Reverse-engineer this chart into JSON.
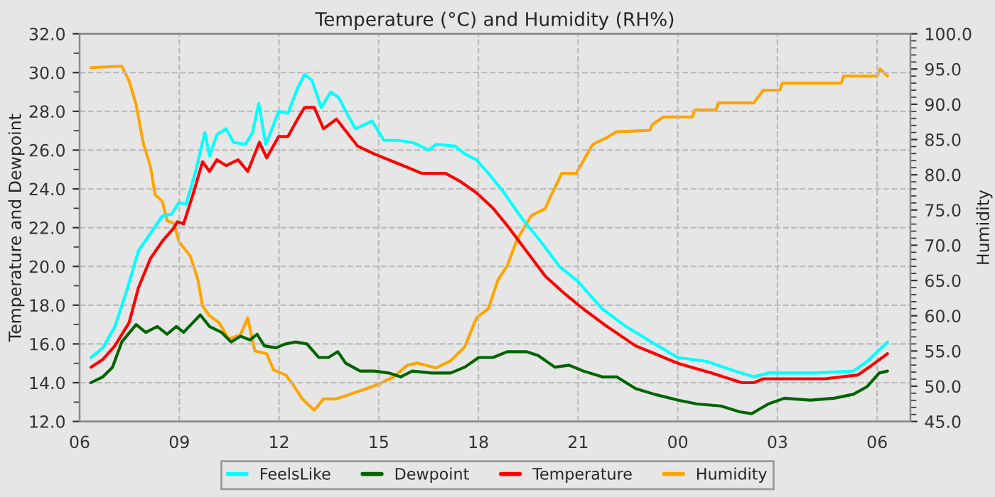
{
  "chart_data": {
    "type": "line",
    "title": "Temperature (°C) and Humidity (RH%)",
    "ylabel": "Temperature and Dewpoint",
    "y2label": "Humidity",
    "xlim": [
      6,
      31
    ],
    "xticks": [
      {
        "value": 6,
        "label": "06"
      },
      {
        "value": 9,
        "label": "09"
      },
      {
        "value": 12,
        "label": "12"
      },
      {
        "value": 15,
        "label": "15"
      },
      {
        "value": 18,
        "label": "18"
      },
      {
        "value": 21,
        "label": "21"
      },
      {
        "value": 24,
        "label": "00"
      },
      {
        "value": 27,
        "label": "03"
      },
      {
        "value": 30,
        "label": "06"
      }
    ],
    "ylim": [
      12,
      32
    ],
    "yticks": [
      {
        "value": 12,
        "label": "12.0"
      },
      {
        "value": 14,
        "label": "14.0"
      },
      {
        "value": 16,
        "label": "16.0"
      },
      {
        "value": 18,
        "label": "18.0"
      },
      {
        "value": 20,
        "label": "20.0"
      },
      {
        "value": 22,
        "label": "22.0"
      },
      {
        "value": 24,
        "label": "24.0"
      },
      {
        "value": 26,
        "label": "26.0"
      },
      {
        "value": 28,
        "label": "28.0"
      },
      {
        "value": 30,
        "label": "30.0"
      },
      {
        "value": 32,
        "label": "32.0"
      }
    ],
    "y2lim": [
      45,
      100
    ],
    "y2ticks": [
      {
        "value": 45,
        "label": "45.0"
      },
      {
        "value": 50,
        "label": "50.0"
      },
      {
        "value": 55,
        "label": "55.0"
      },
      {
        "value": 60,
        "label": "60.0"
      },
      {
        "value": 65,
        "label": "65.0"
      },
      {
        "value": 70,
        "label": "70.0"
      },
      {
        "value": 75,
        "label": "75.0"
      },
      {
        "value": 80,
        "label": "80.0"
      },
      {
        "value": 85,
        "label": "85.0"
      },
      {
        "value": 90,
        "label": "90.0"
      },
      {
        "value": 95,
        "label": "95.0"
      },
      {
        "value": 100,
        "label": "100.0"
      }
    ],
    "grid": true,
    "legend": "bottom",
    "line_style": "solid",
    "marker": "none",
    "series": [
      {
        "name": "FeelsLike",
        "color": "#00ffff",
        "x": [
          6.34,
          6.7,
          7.06,
          7.41,
          7.77,
          8.13,
          8.49,
          8.77,
          8.99,
          9.2,
          9.49,
          9.77,
          9.91,
          10.13,
          10.41,
          10.63,
          10.99,
          11.2,
          11.39,
          11.6,
          11.77,
          11.99,
          12.27,
          12.56,
          12.77,
          12.99,
          13.27,
          13.56,
          13.8,
          14.01,
          14.3,
          14.8,
          15.16,
          15.59,
          16.01,
          16.51,
          16.73,
          17.3,
          17.59,
          17.94,
          18.3,
          18.73,
          19.3,
          19.87,
          20.44,
          21.01,
          21.73,
          22.44,
          23.3,
          24.0,
          24.87,
          25.72,
          26.29,
          26.72,
          28.14,
          29.28,
          29.7,
          30.31
        ],
        "values": [
          15.3,
          15.8,
          16.9,
          18.7,
          20.8,
          21.7,
          22.6,
          22.7,
          23.3,
          23.2,
          24.9,
          26.9,
          25.7,
          26.8,
          27.1,
          26.4,
          26.3,
          26.9,
          28.4,
          26.3,
          27.0,
          28.0,
          27.9,
          29.2,
          29.9,
          29.6,
          28.2,
          29.0,
          28.7,
          28.0,
          27.1,
          27.5,
          26.5,
          26.5,
          26.4,
          26.0,
          26.3,
          26.2,
          25.8,
          25.5,
          24.8,
          23.9,
          22.5,
          21.3,
          20.0,
          19.2,
          17.8,
          16.9,
          16.0,
          15.3,
          15.1,
          14.6,
          14.3,
          14.5,
          14.5,
          14.6,
          15.1,
          16.1
        ]
      },
      {
        "name": "Dewpoint",
        "color": "#006400",
        "x": [
          6.34,
          6.7,
          6.99,
          7.27,
          7.7,
          7.99,
          8.34,
          8.63,
          8.91,
          9.13,
          9.41,
          9.63,
          9.91,
          10.27,
          10.56,
          10.84,
          11.13,
          11.34,
          11.56,
          11.91,
          12.2,
          12.49,
          12.84,
          13.2,
          13.49,
          13.77,
          14.01,
          14.44,
          14.87,
          15.3,
          15.66,
          16.01,
          16.59,
          17.16,
          17.59,
          18.01,
          18.44,
          18.87,
          19.44,
          19.8,
          20.3,
          20.73,
          21.16,
          21.73,
          22.16,
          22.73,
          23.3,
          24.0,
          24.58,
          25.29,
          25.86,
          26.22,
          26.72,
          27.21,
          27.99,
          28.7,
          29.28,
          29.7,
          30.06,
          30.31
        ],
        "values": [
          14.0,
          14.3,
          14.8,
          16.1,
          17.0,
          16.6,
          16.9,
          16.5,
          16.9,
          16.6,
          17.1,
          17.5,
          16.9,
          16.6,
          16.1,
          16.4,
          16.2,
          16.5,
          15.9,
          15.8,
          16.0,
          16.1,
          16.0,
          15.3,
          15.3,
          15.6,
          15.0,
          14.6,
          14.6,
          14.5,
          14.3,
          14.6,
          14.5,
          14.5,
          14.8,
          15.3,
          15.3,
          15.6,
          15.6,
          15.4,
          14.8,
          14.9,
          14.6,
          14.3,
          14.3,
          13.7,
          13.4,
          13.1,
          12.9,
          12.8,
          12.5,
          12.4,
          12.9,
          13.2,
          13.1,
          13.2,
          13.4,
          13.8,
          14.5,
          14.6
        ]
      },
      {
        "name": "Temperature",
        "color": "#ff0000",
        "x": [
          6.34,
          6.7,
          7.06,
          7.49,
          7.77,
          8.13,
          8.49,
          8.84,
          8.94,
          9.13,
          9.41,
          9.7,
          9.91,
          10.13,
          10.41,
          10.77,
          11.06,
          11.41,
          11.63,
          11.99,
          12.27,
          12.56,
          12.77,
          13.06,
          13.34,
          13.73,
          14.0,
          14.37,
          14.87,
          15.59,
          16.3,
          17.01,
          17.44,
          17.94,
          18.44,
          18.87,
          19.44,
          20.01,
          20.59,
          21.16,
          21.87,
          22.73,
          23.3,
          24.0,
          25.01,
          25.93,
          26.29,
          26.57,
          27.43,
          28.42,
          29.42,
          29.84,
          30.31
        ],
        "values": [
          14.8,
          15.2,
          15.9,
          17.1,
          18.9,
          20.4,
          21.3,
          22.0,
          22.3,
          22.2,
          23.7,
          25.4,
          24.9,
          25.5,
          25.2,
          25.5,
          24.9,
          26.4,
          25.6,
          26.7,
          26.7,
          27.6,
          28.2,
          28.2,
          27.1,
          27.6,
          27.0,
          26.2,
          25.8,
          25.3,
          24.8,
          24.8,
          24.4,
          23.8,
          23.0,
          22.1,
          20.8,
          19.5,
          18.6,
          17.8,
          16.9,
          15.9,
          15.5,
          15.0,
          14.5,
          14.0,
          14.0,
          14.2,
          14.2,
          14.2,
          14.4,
          14.9,
          15.5
        ]
      },
      {
        "name": "Humidity",
        "color": "#ffa500",
        "axis": "y2",
        "x": [
          6.34,
          7.27,
          7.49,
          7.7,
          7.91,
          8.13,
          8.27,
          8.49,
          8.63,
          8.84,
          8.99,
          9.34,
          9.56,
          9.7,
          9.91,
          10.2,
          10.49,
          10.84,
          11.06,
          11.27,
          11.63,
          11.84,
          12.2,
          12.41,
          12.7,
          13.06,
          13.34,
          13.73,
          14.16,
          14.59,
          15.01,
          15.44,
          15.87,
          16.16,
          16.73,
          17.16,
          17.59,
          17.94,
          18.3,
          18.59,
          18.87,
          19.16,
          19.59,
          20.01,
          20.16,
          20.51,
          20.94,
          21.16,
          21.44,
          21.87,
          22.16,
          23.16,
          23.23,
          23.56,
          24.44,
          24.51,
          25.15,
          25.22,
          26.29,
          26.57,
          27.07,
          27.14,
          28.92,
          28.99,
          29.99,
          30.09,
          30.31
        ],
        "values": [
          95.2,
          95.4,
          93.3,
          90.0,
          84.6,
          81.2,
          77.2,
          76.2,
          73.5,
          73.1,
          70.5,
          68.4,
          65.1,
          61.4,
          60.0,
          59.0,
          56.7,
          57.3,
          59.7,
          55.0,
          54.6,
          52.3,
          51.6,
          50.3,
          48.2,
          46.6,
          48.2,
          48.2,
          48.9,
          49.6,
          50.3,
          51.3,
          53.0,
          53.3,
          52.6,
          53.6,
          55.6,
          59.7,
          61.0,
          65.1,
          67.1,
          70.8,
          74.2,
          75.2,
          76.8,
          80.2,
          80.2,
          82.0,
          84.3,
          85.3,
          86.1,
          86.3,
          87.1,
          88.2,
          88.2,
          89.2,
          89.2,
          90.2,
          90.2,
          92.0,
          92.0,
          93.0,
          93.0,
          94.0,
          94.0,
          95.0,
          94.0
        ]
      }
    ]
  }
}
